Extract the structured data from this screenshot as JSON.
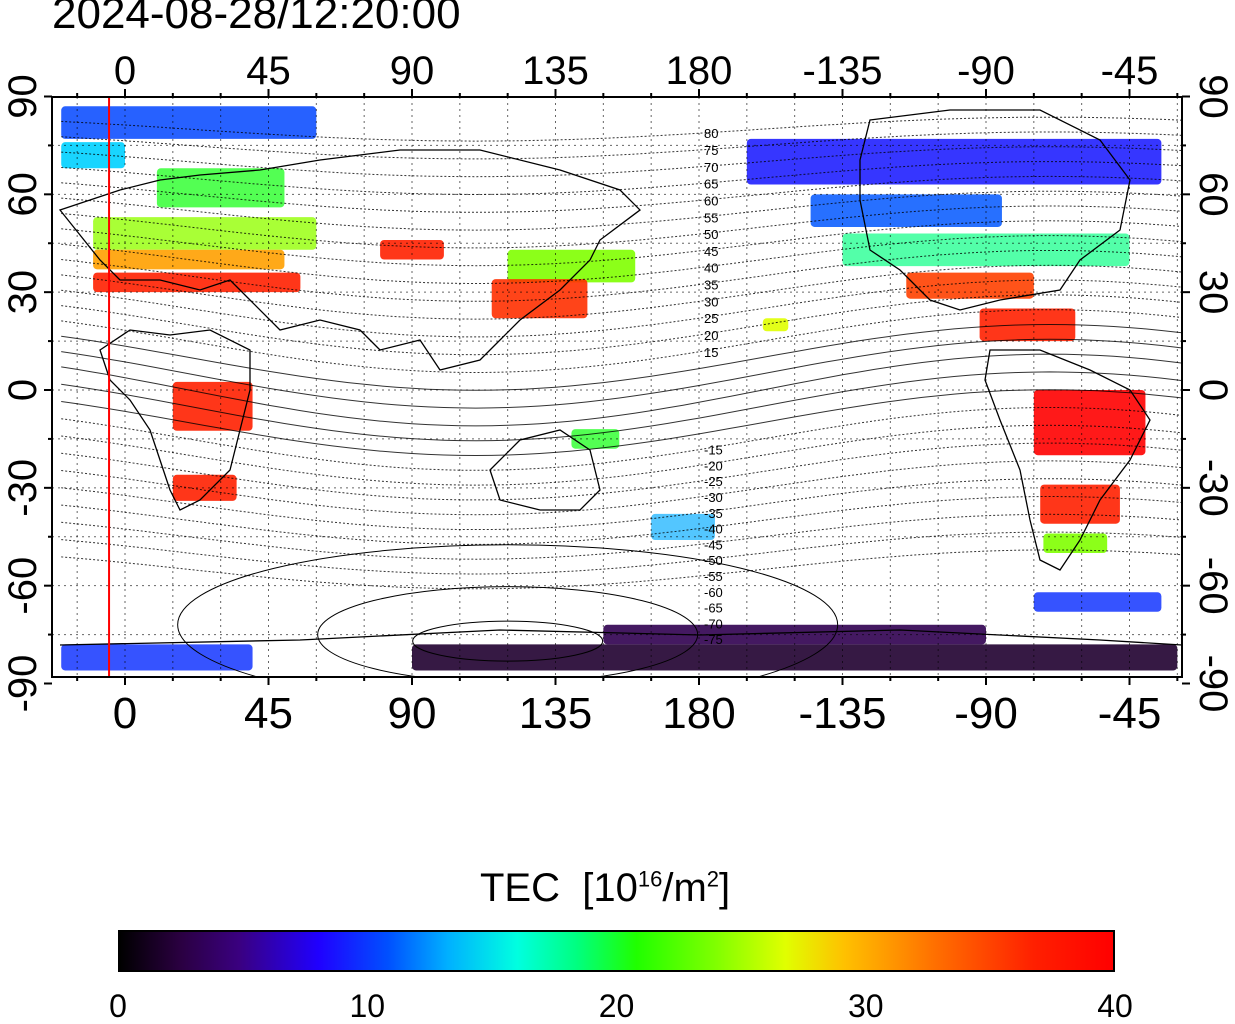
{
  "header": {
    "timestamp": "2024-08-28/12:20:00"
  },
  "map": {
    "lon_ticks": [
      {
        "lon": 0,
        "label": "0"
      },
      {
        "lon": 45,
        "label": "45"
      },
      {
        "lon": 90,
        "label": "90"
      },
      {
        "lon": 135,
        "label": "135"
      },
      {
        "lon": 180,
        "label": "180"
      },
      {
        "lon": 225,
        "label": "-135"
      },
      {
        "lon": 270,
        "label": "-90"
      },
      {
        "lon": 315,
        "label": "-45"
      }
    ],
    "lat_ticks": [
      {
        "lat": 90,
        "label": "90"
      },
      {
        "lat": 60,
        "label": "60"
      },
      {
        "lat": 30,
        "label": "30"
      },
      {
        "lat": 0,
        "label": "0"
      },
      {
        "lat": -30,
        "label": "-30"
      },
      {
        "lat": -60,
        "label": "-60"
      },
      {
        "lat": -90,
        "label": "-90"
      }
    ],
    "contour_labels": [
      {
        "lat": 80,
        "label": "80"
      },
      {
        "lat": 75,
        "label": "75"
      },
      {
        "lat": 70,
        "label": "70"
      },
      {
        "lat": 65,
        "label": "65"
      },
      {
        "lat": 60,
        "label": "60"
      },
      {
        "lat": 55,
        "label": "55"
      },
      {
        "lat": 50,
        "label": "50"
      },
      {
        "lat": 45,
        "label": "45"
      },
      {
        "lat": 40,
        "label": "40"
      },
      {
        "lat": 35,
        "label": "35"
      },
      {
        "lat": 30,
        "label": "30"
      },
      {
        "lat": 25,
        "label": "25"
      },
      {
        "lat": 20,
        "label": "20"
      },
      {
        "lat": 15,
        "label": "15"
      },
      {
        "lat": -15,
        "label": "-15"
      },
      {
        "lat": -20,
        "label": "-20"
      },
      {
        "lat": -25,
        "label": "-25"
      },
      {
        "lat": -30,
        "label": "-30"
      },
      {
        "lat": -35,
        "label": "-35"
      },
      {
        "lat": -40,
        "label": "-40"
      },
      {
        "lat": -45,
        "label": "-45"
      },
      {
        "lat": -50,
        "label": "-50"
      },
      {
        "lat": -55,
        "label": "-55"
      },
      {
        "lat": -60,
        "label": "-60"
      },
      {
        "lat": -65,
        "label": "-65"
      },
      {
        "lat": -70,
        "label": "-70"
      },
      {
        "lat": -75,
        "label": "-75"
      }
    ],
    "terminator_lon": -5,
    "colors": {
      "terminator": "#ff0000",
      "frame": "#000000"
    }
  },
  "colorbar": {
    "title": "TEC",
    "unit_base": "10",
    "unit_exp": "16",
    "unit_per": "/m",
    "unit_exp2": "2",
    "min": 0,
    "max": 40,
    "tick_labels": [
      "0",
      "10",
      "20",
      "30",
      "40"
    ]
  }
}
